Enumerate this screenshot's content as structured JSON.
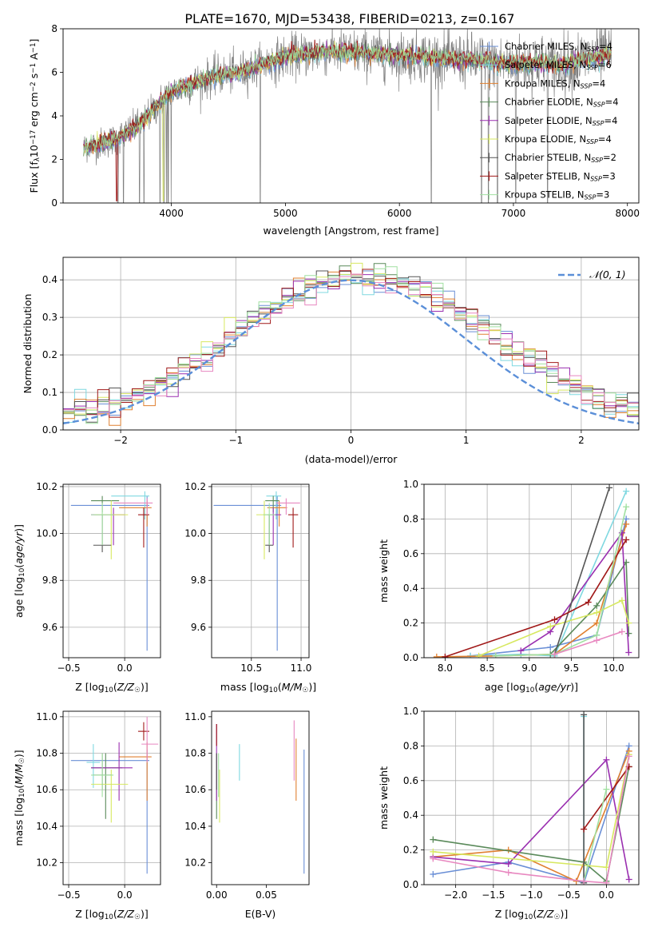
{
  "figure_title": "PLATE=1670, MJD=53438, FIBERID=0213, z=0.167",
  "colors": {
    "chabrier_miles": "#6a8fd6",
    "salpeter_miles": "#7fd8e0",
    "kroupa_miles": "#e08030",
    "chabrier_elodie": "#5a8a5a",
    "salpeter_elodie": "#9a2fb0",
    "kroupa_elodie": "#d7e860",
    "chabrier_stelib": "#555555",
    "salpeter_stelib": "#a01818",
    "kroupa_stelib": "#a0e0a0",
    "pink": "#e888c0",
    "gauss": "#5b8fd8",
    "data": "#808080"
  },
  "chart_data": [
    {
      "type": "line",
      "title": "PLATE=1670, MJD=53438, FIBERID=0213, z=0.167",
      "xlabel": "wavelength [Angstrom, rest frame]",
      "ylabel": "Flux [f_λ10^-17 erg cm^-2 s^-1 A^-1]",
      "xlim": [
        3050,
        8100
      ],
      "ylim": [
        0,
        8
      ],
      "xticks": [
        4000,
        5000,
        6000,
        7000,
        8000
      ],
      "yticks": [
        0,
        2,
        4,
        6,
        8
      ],
      "grid": false,
      "legend_position": "top-right",
      "spectrum_knots": {
        "x": [
          3230,
          3400,
          3500,
          3700,
          3850,
          3950,
          4050,
          4200,
          4400,
          4600,
          4800,
          5000,
          5200,
          5400,
          5600,
          5800,
          6000,
          6200,
          6400,
          6600,
          6800,
          7000,
          7200,
          7400,
          7600,
          7800,
          7860
        ],
        "y": [
          2.55,
          2.75,
          2.9,
          3.5,
          4.3,
          4.9,
          5.2,
          5.5,
          5.85,
          6.0,
          6.35,
          6.7,
          6.85,
          6.95,
          6.9,
          6.85,
          6.75,
          6.75,
          6.6,
          6.6,
          6.5,
          6.35,
          6.45,
          6.3,
          6.6,
          6.75,
          6.8
        ]
      },
      "series": [
        {
          "name": "Chabrier MILES, N_SSP=4",
          "label_main": "Chabrier MILES, N",
          "label_sub": "SSP",
          "label_end": "=4",
          "color": "#6a8fd6"
        },
        {
          "name": "Salpeter MILES, N_SSP=6",
          "label_main": "Salpeter MILES, N",
          "label_sub": "SSP",
          "label_end": "=6",
          "color": "#7fd8e0"
        },
        {
          "name": "Kroupa MILES, N_SSP=4",
          "label_main": "Kroupa MILES, N",
          "label_sub": "SSP",
          "label_end": "=4",
          "color": "#e08030"
        },
        {
          "name": "Chabrier ELODIE, N_SSP=4",
          "label_main": "Chabrier ELODIE, N",
          "label_sub": "SSP",
          "label_end": "=4",
          "color": "#5a8a5a"
        },
        {
          "name": "Salpeter ELODIE, N_SSP=4",
          "label_main": "Salpeter ELODIE, N",
          "label_sub": "SSP",
          "label_end": "=4",
          "color": "#9a2fb0"
        },
        {
          "name": "Kroupa ELODIE, N_SSP=4",
          "label_main": "Kroupa ELODIE, N",
          "label_sub": "SSP",
          "label_end": "=4",
          "color": "#d7e860"
        },
        {
          "name": "Chabrier STELIB, N_SSP=2",
          "label_main": "Chabrier STELIB, N",
          "label_sub": "SSP",
          "label_end": "=2",
          "color": "#555555"
        },
        {
          "name": "Salpeter STELIB, N_SSP=3",
          "label_main": "Salpeter STELIB, N",
          "label_sub": "SSP",
          "label_end": "=3",
          "color": "#a01818"
        },
        {
          "name": "Kroupa STELIB, N_SSP=3",
          "label_main": "Kroupa STELIB, N",
          "label_sub": "SSP",
          "label_end": "=3",
          "color": "#a0e0a0"
        }
      ]
    },
    {
      "type": "line",
      "xlabel": "(data-model)/error",
      "ylabel": "Normed distribution",
      "xlim": [
        -2.5,
        2.5
      ],
      "ylim": [
        0,
        0.46
      ],
      "xticks": [
        -2,
        -1,
        0,
        1,
        2
      ],
      "yticks": [
        0.0,
        0.1,
        0.2,
        0.3,
        0.4
      ],
      "grid": true,
      "legend_position": "top-right",
      "legend_label": "𝒩(0, 1)",
      "gaussian": {
        "mean": 0,
        "sigma": 1
      },
      "histogram_bin_width": 0.1
    },
    {
      "type": "scatter",
      "xlabel": "Z [log10(Z/Z☉)]",
      "ylabel": "age [log10(age/yr)]",
      "xlim": [
        -0.55,
        0.32
      ],
      "ylim": [
        9.47,
        10.21
      ],
      "xticks": [
        -0.5,
        0.0
      ],
      "yticks": [
        9.6,
        9.8,
        10.0,
        10.2
      ],
      "grid": true,
      "points": [
        {
          "x": 0.2,
          "y": 10.12,
          "xerr": [
            0.68,
            0.02
          ],
          "yerr": [
            0.62,
            0.04
          ],
          "color": "#6a8fd6"
        },
        {
          "x": 0.18,
          "y": 10.16,
          "xerr": [
            0.3,
            0.04
          ],
          "yerr": [
            0.1,
            0.02
          ],
          "color": "#7fd8e0"
        },
        {
          "x": 0.2,
          "y": 10.11,
          "xerr": [
            0.25,
            0.04
          ],
          "yerr": [
            0.08,
            0.03
          ],
          "color": "#e08030"
        },
        {
          "x": -0.2,
          "y": 10.14,
          "xerr": [
            0.1,
            0.15
          ],
          "yerr": [
            0.05,
            0.02
          ],
          "color": "#5a8a5a"
        },
        {
          "x": -0.1,
          "y": 10.08,
          "xerr": [
            0.2,
            0.1
          ],
          "yerr": [
            0.13,
            0.03
          ],
          "color": "#9a2fb0"
        },
        {
          "x": -0.12,
          "y": 10.08,
          "xerr": [
            0.15,
            0.15
          ],
          "yerr": [
            0.19,
            0.06
          ],
          "color": "#d7e860"
        },
        {
          "x": -0.2,
          "y": 9.95,
          "xerr": [
            0.08,
            0.08
          ],
          "yerr": [
            0.03,
            0.13
          ],
          "color": "#555555"
        },
        {
          "x": 0.17,
          "y": 10.08,
          "xerr": [
            0.05,
            0.05
          ],
          "yerr": [
            0.14,
            0.03
          ],
          "color": "#a01818"
        },
        {
          "x": -0.2,
          "y": 10.08,
          "xerr": [
            0.1,
            0.1
          ],
          "yerr": [
            0.13,
            0.05
          ],
          "color": "#a0e0a0"
        },
        {
          "x": 0.2,
          "y": 10.13,
          "xerr": [
            0.3,
            0.05
          ],
          "yerr": [
            0.05,
            0.02
          ],
          "color": "#e888c0"
        }
      ]
    },
    {
      "type": "scatter",
      "xlabel": "mass [log10(M/M☉)]",
      "ylabel": "",
      "xlim": [
        10.1,
        11.08
      ],
      "ylim": [
        9.47,
        10.21
      ],
      "xticks": [
        10.5,
        11.0
      ],
      "yticks": [
        9.6,
        9.8,
        10.0,
        10.2
      ],
      "grid": true,
      "points": [
        {
          "x": 10.76,
          "y": 10.12,
          "xerr": [
            0.64,
            0.04
          ],
          "yerr": [
            0.62,
            0.04
          ],
          "color": "#6a8fd6"
        },
        {
          "x": 10.75,
          "y": 10.16,
          "xerr": [
            0.1,
            0.05
          ],
          "yerr": [
            0.1,
            0.02
          ],
          "color": "#7fd8e0"
        },
        {
          "x": 10.78,
          "y": 10.11,
          "xerr": [
            0.12,
            0.08
          ],
          "yerr": [
            0.08,
            0.03
          ],
          "color": "#e08030"
        },
        {
          "x": 10.72,
          "y": 10.14,
          "xerr": [
            0.08,
            0.06
          ],
          "yerr": [
            0.05,
            0.02
          ],
          "color": "#5a8a5a"
        },
        {
          "x": 10.72,
          "y": 10.08,
          "xerr": [
            0.06,
            0.08
          ],
          "yerr": [
            0.13,
            0.03
          ],
          "color": "#9a2fb0"
        },
        {
          "x": 10.63,
          "y": 10.08,
          "xerr": [
            0.08,
            0.06
          ],
          "yerr": [
            0.19,
            0.06
          ],
          "color": "#d7e860"
        },
        {
          "x": 10.68,
          "y": 9.95,
          "xerr": [
            0.04,
            0.04
          ],
          "yerr": [
            0.03,
            0.13
          ],
          "color": "#555555"
        },
        {
          "x": 10.92,
          "y": 10.08,
          "xerr": [
            0.05,
            0.05
          ],
          "yerr": [
            0.14,
            0.03
          ],
          "color": "#a01818"
        },
        {
          "x": 10.68,
          "y": 10.08,
          "xerr": [
            0.06,
            0.06
          ],
          "yerr": [
            0.13,
            0.05
          ],
          "color": "#a0e0a0"
        },
        {
          "x": 10.85,
          "y": 10.13,
          "xerr": [
            0.1,
            0.14
          ],
          "yerr": [
            0.05,
            0.02
          ],
          "color": "#e888c0"
        }
      ]
    },
    {
      "type": "line",
      "xlabel": "age [log10(age/yr)]",
      "ylabel": "mass weight",
      "xlim": [
        7.75,
        10.3
      ],
      "ylim": [
        0,
        1.0
      ],
      "xticks": [
        8.0,
        8.5,
        9.0,
        9.5,
        10.0
      ],
      "yticks": [
        0.0,
        0.2,
        0.4,
        0.6,
        0.8,
        1.0
      ],
      "grid": true,
      "series": [
        {
          "x": [
            8.3,
            9.25,
            9.8,
            10.15
          ],
          "y": [
            0.01,
            0.06,
            0.13,
            0.8
          ],
          "color": "#6a8fd6"
        },
        {
          "x": [
            8.3,
            8.9,
            9.3,
            10.15
          ],
          "y": [
            0.01,
            0.02,
            0.01,
            0.96
          ],
          "color": "#7fd8e0"
        },
        {
          "x": [
            7.9,
            8.6,
            9.3,
            9.8,
            10.15
          ],
          "y": [
            0.005,
            0.01,
            0.02,
            0.2,
            0.77
          ],
          "color": "#e08030"
        },
        {
          "x": [
            9.25,
            9.8,
            10.15,
            10.18
          ],
          "y": [
            0.02,
            0.3,
            0.55,
            0.14
          ],
          "color": "#5a8a5a"
        },
        {
          "x": [
            8.9,
            9.25,
            10.1,
            10.18
          ],
          "y": [
            0.04,
            0.15,
            0.72,
            0.03
          ],
          "color": "#9a2fb0"
        },
        {
          "x": [
            8.4,
            9.25,
            9.8,
            10.1,
            10.18
          ],
          "y": [
            0.01,
            0.18,
            0.26,
            0.33,
            0.2
          ],
          "color": "#d7e860"
        },
        {
          "x": [
            9.3,
            9.95
          ],
          "y": [
            0.02,
            0.98
          ],
          "color": "#555555"
        },
        {
          "x": [
            8.0,
            9.3,
            9.7,
            10.15
          ],
          "y": [
            0.005,
            0.22,
            0.32,
            0.68
          ],
          "color": "#a01818"
        },
        {
          "x": [
            8.6,
            9.3,
            9.8,
            10.15
          ],
          "y": [
            0.01,
            0.02,
            0.13,
            0.87
          ],
          "color": "#a0e0a0"
        },
        {
          "x": [
            9.3,
            9.8,
            10.1
          ],
          "y": [
            0.02,
            0.1,
            0.15
          ],
          "color": "#e888c0"
        }
      ]
    },
    {
      "type": "scatter",
      "xlabel": "Z [log10(Z/Z☉)]",
      "ylabel": "mass [log10(M/M☉)]",
      "xlim": [
        -0.55,
        0.32
      ],
      "ylim": [
        10.08,
        11.03
      ],
      "xticks": [
        -0.5,
        0.0
      ],
      "yticks": [
        10.2,
        10.4,
        10.6,
        10.8,
        11.0
      ],
      "grid": true,
      "points": [
        {
          "x": 0.2,
          "y": 10.76,
          "xerr": [
            0.68,
            0.02
          ],
          "yerr": [
            0.62,
            0.06
          ],
          "color": "#6a8fd6"
        },
        {
          "x": -0.28,
          "y": 10.75,
          "xerr": [
            0.06,
            0.06
          ],
          "yerr": [
            0.14,
            0.1
          ],
          "color": "#7fd8e0"
        },
        {
          "x": 0.2,
          "y": 10.78,
          "xerr": [
            0.25,
            0.04
          ],
          "yerr": [
            0.24,
            0.08
          ],
          "color": "#e08030"
        },
        {
          "x": -0.17,
          "y": 10.72,
          "xerr": [
            0.13,
            0.15
          ],
          "yerr": [
            0.28,
            0.08
          ],
          "color": "#5a8a5a"
        },
        {
          "x": -0.05,
          "y": 10.72,
          "xerr": [
            0.25,
            0.12
          ],
          "yerr": [
            0.18,
            0.14
          ],
          "color": "#9a2fb0"
        },
        {
          "x": -0.12,
          "y": 10.63,
          "xerr": [
            0.18,
            0.15
          ],
          "yerr": [
            0.21,
            0.08
          ],
          "color": "#d7e860"
        },
        {
          "x": -0.2,
          "y": 10.68,
          "xerr": [
            0.08,
            0.08
          ],
          "yerr": [
            0.08,
            0.12
          ],
          "color": "#555555"
        },
        {
          "x": 0.17,
          "y": 10.92,
          "xerr": [
            0.05,
            0.05
          ],
          "yerr": [
            0.05,
            0.05
          ],
          "color": "#a01818"
        },
        {
          "x": -0.2,
          "y": 10.68,
          "xerr": [
            0.1,
            0.1
          ],
          "yerr": [
            0.12,
            0.12
          ],
          "color": "#a0e0a0"
        },
        {
          "x": 0.2,
          "y": 10.85,
          "xerr": [
            0.05,
            0.1
          ],
          "yerr": [
            0.1,
            0.15
          ],
          "color": "#e888c0"
        }
      ]
    },
    {
      "type": "scatter",
      "xlabel": "E(B-V)",
      "ylabel": "",
      "xlim": [
        -0.005,
        0.093
      ],
      "ylim": [
        10.08,
        11.03
      ],
      "xticks": [
        0.0,
        0.05
      ],
      "yticks": [
        10.2,
        10.4,
        10.6,
        10.8,
        11.0
      ],
      "grid": false,
      "points": [
        {
          "x": 0.088,
          "y": 10.76,
          "yerr": [
            0.62,
            0.06
          ],
          "color": "#6a8fd6"
        },
        {
          "x": 0.023,
          "y": 10.75,
          "yerr": [
            0.1,
            0.1
          ],
          "color": "#7fd8e0"
        },
        {
          "x": 0.08,
          "y": 10.78,
          "yerr": [
            0.24,
            0.1
          ],
          "color": "#e08030"
        },
        {
          "x": 0.0,
          "y": 10.72,
          "yerr": [
            0.28,
            0.08
          ],
          "color": "#5a8a5a"
        },
        {
          "x": 0.0,
          "y": 10.72,
          "yerr": [
            0.18,
            0.24
          ],
          "color": "#9a2fb0"
        },
        {
          "x": 0.003,
          "y": 10.63,
          "yerr": [
            0.21,
            0.08
          ],
          "color": "#d7e860"
        },
        {
          "x": 0.0,
          "y": 10.68,
          "yerr": [
            0.08,
            0.12
          ],
          "color": "#555555"
        },
        {
          "x": 0.0,
          "y": 10.92,
          "yerr": [
            0.08,
            0.04
          ],
          "color": "#a01818"
        },
        {
          "x": 0.002,
          "y": 10.68,
          "yerr": [
            0.12,
            0.12
          ],
          "color": "#a0e0a0"
        },
        {
          "x": 0.078,
          "y": 10.85,
          "yerr": [
            0.2,
            0.13
          ],
          "color": "#e888c0"
        }
      ]
    },
    {
      "type": "line",
      "xlabel": "Z [log10(Z/Z☉)]",
      "ylabel": "mass weight",
      "xlim": [
        -2.42,
        0.43
      ],
      "ylim": [
        0,
        1.0
      ],
      "xticks": [
        -2.0,
        -1.5,
        -1.0,
        -0.5,
        0.0
      ],
      "yticks": [
        0.0,
        0.2,
        0.4,
        0.6,
        0.8,
        1.0
      ],
      "grid": true,
      "series": [
        {
          "x": [
            -2.3,
            -1.3,
            -0.3,
            0.3
          ],
          "y": [
            0.06,
            0.13,
            0.01,
            0.8
          ],
          "color": "#6a8fd6"
        },
        {
          "x": [
            -0.3,
            -0.3
          ],
          "y": [
            0.97,
            0.02
          ],
          "color": "#7fd8e0"
        },
        {
          "x": [
            -2.3,
            -1.3,
            -0.4,
            0.3
          ],
          "y": [
            0.16,
            0.2,
            0.02,
            0.77
          ],
          "color": "#e08030"
        },
        {
          "x": [
            -2.3,
            -0.3,
            0.0,
            0.3
          ],
          "y": [
            0.26,
            0.13,
            0.02,
            0.68
          ],
          "color": "#5a8a5a"
        },
        {
          "x": [
            -2.3,
            -1.3,
            0.0,
            0.3
          ],
          "y": [
            0.16,
            0.12,
            0.72,
            0.03
          ],
          "color": "#9a2fb0"
        },
        {
          "x": [
            -2.3,
            0.0,
            0.3
          ],
          "y": [
            0.19,
            0.1,
            0.75
          ],
          "color": "#d7e860"
        },
        {
          "x": [
            -0.3,
            -0.3
          ],
          "y": [
            0.98,
            0.01
          ],
          "color": "#555555"
        },
        {
          "x": [
            -0.3,
            0.3
          ],
          "y": [
            0.32,
            0.68
          ],
          "color": "#a01818"
        },
        {
          "x": [
            -0.3,
            0.0
          ],
          "y": [
            0.02,
            0.55
          ],
          "color": "#a0e0a0"
        },
        {
          "x": [
            -2.3,
            -1.3,
            -0.3,
            0.0,
            0.3
          ],
          "y": [
            0.15,
            0.07,
            0.02,
            0.01,
            0.74
          ],
          "color": "#e888c0"
        }
      ]
    }
  ]
}
